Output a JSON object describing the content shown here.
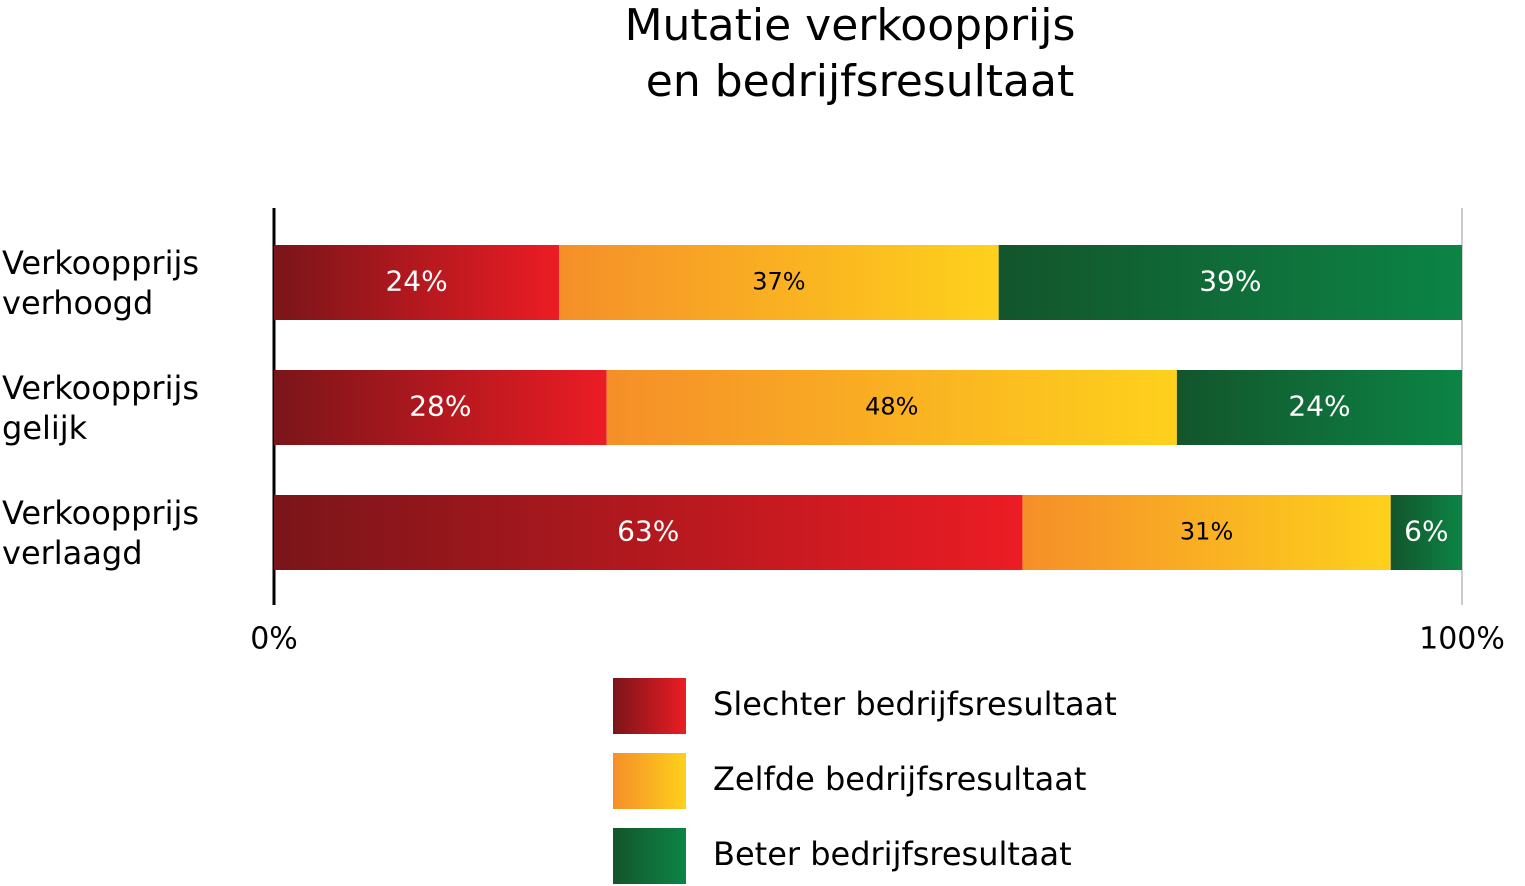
{
  "chart_data": {
    "type": "stacked_barh",
    "title": [
      "Mutatie verkoopprijs",
      "en bedrijfsresultaat"
    ],
    "categories": [
      "Verkoopprijs verhoogd",
      "Verkoopprijs gelijk",
      "Verkoopprijs verlaagd"
    ],
    "series": [
      {
        "name": "Slechter bedrijfsresultaat",
        "color": [
          "#7a1519",
          "#ec1c24"
        ],
        "values": [
          24,
          28,
          63
        ],
        "value_labels": [
          "24%",
          "28%",
          "63%"
        ]
      },
      {
        "name": "Zelfde bedrijfsresultaat",
        "color": [
          "#f58f29",
          "#fed11c"
        ],
        "values": [
          37,
          48,
          31
        ],
        "value_labels": [
          "37%",
          "48%",
          "31%"
        ]
      },
      {
        "name": "Beter bedrijfsresultaat",
        "color": [
          "#13552c",
          "#0c8445"
        ],
        "values": [
          39,
          24,
          6
        ],
        "value_labels": [
          "39%",
          "24%",
          "6%"
        ]
      }
    ],
    "xlim": [
      0,
      100
    ],
    "xticks": [
      {
        "value": 0,
        "label": "0%"
      },
      {
        "value": 100,
        "label": "100%"
      }
    ]
  }
}
